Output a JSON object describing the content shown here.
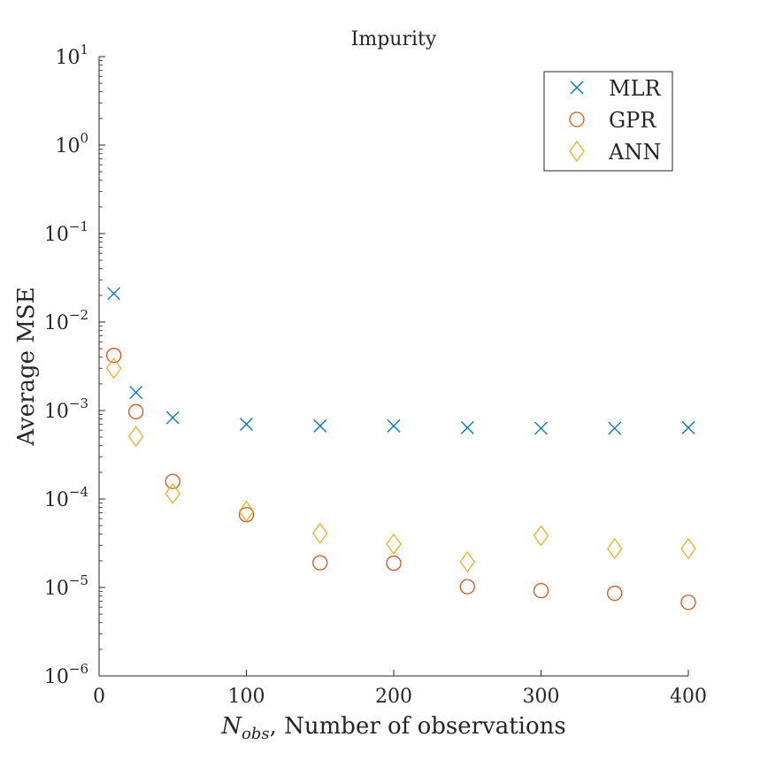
{
  "chart_data": {
    "type": "scatter",
    "title": "Impurity",
    "xlabel": {
      "symbol": "N",
      "subscript": "obs",
      "text": ", Number of observations"
    },
    "ylabel": "Average MSE",
    "xlim": [
      0,
      400
    ],
    "ylim": [
      1e-06,
      10
    ],
    "yscale": "log",
    "grid": false,
    "legend_position": "top-right",
    "x_ticks": [
      0,
      100,
      200,
      300,
      400
    ],
    "y_ticks": [
      {
        "value": 1e-06,
        "base": "10",
        "exp": "−6"
      },
      {
        "value": 1e-05,
        "base": "10",
        "exp": "−5"
      },
      {
        "value": 0.0001,
        "base": "10",
        "exp": "−4"
      },
      {
        "value": 0.001,
        "base": "10",
        "exp": "−3"
      },
      {
        "value": 0.01,
        "base": "10",
        "exp": "−2"
      },
      {
        "value": 0.1,
        "base": "10",
        "exp": "−1"
      },
      {
        "value": 1,
        "base": "10",
        "exp": "0"
      },
      {
        "value": 10,
        "base": "10",
        "exp": "1"
      }
    ],
    "x": [
      10,
      25,
      50,
      100,
      150,
      200,
      250,
      300,
      350,
      400
    ],
    "series": [
      {
        "name": "MLR",
        "marker": "x",
        "color": "#0072BD",
        "values": [
          0.021,
          0.0016,
          0.00083,
          0.0007,
          0.00067,
          0.00067,
          0.00064,
          0.00063,
          0.00063,
          0.00064
        ]
      },
      {
        "name": "GPR",
        "marker": "o",
        "color": "#D95319",
        "values": [
          0.0042,
          0.00097,
          0.000158,
          6.65e-05,
          1.9e-05,
          1.88e-05,
          1.02e-05,
          9.2e-06,
          8.6e-06,
          6.8e-06
        ]
      },
      {
        "name": "ANN",
        "marker": "diamond",
        "color": "#EDB120",
        "values": [
          0.003,
          0.00051,
          0.000115,
          7.25e-05,
          4.1e-05,
          3.1e-05,
          1.95e-05,
          3.85e-05,
          2.75e-05,
          2.75e-05
        ]
      }
    ]
  }
}
